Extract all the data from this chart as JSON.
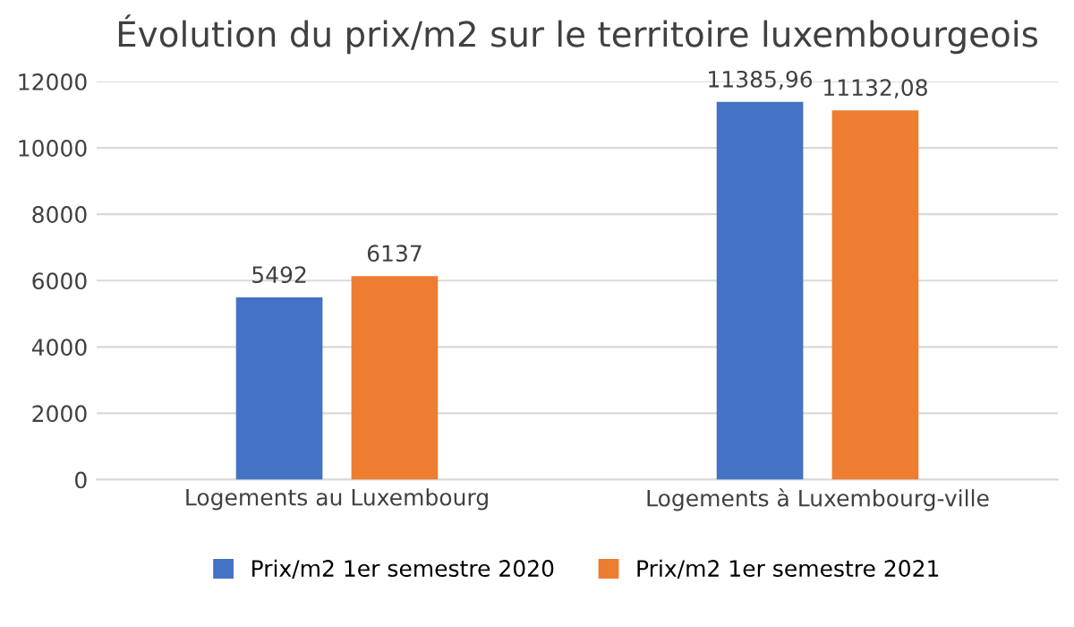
{
  "chart_data": {
    "type": "bar",
    "title": "Évolution du prix/m2 sur le territoire luxembourgeois",
    "categories": [
      "Logements au Luxembourg",
      "Logements à Luxembourg-ville"
    ],
    "series": [
      {
        "name": "Prix/m2 1er semestre 2020",
        "color": "#4472c4",
        "values": [
          5492,
          11385.96
        ],
        "value_labels": [
          "5492",
          "11385,96"
        ]
      },
      {
        "name": "Prix/m2 1er semestre 2021",
        "color": "#ed7d31",
        "values": [
          6137,
          11132.08
        ],
        "value_labels": [
          "6137",
          "11132,08"
        ]
      }
    ],
    "ylim": [
      0,
      12000
    ],
    "yticks": [
      0,
      2000,
      4000,
      6000,
      8000,
      10000,
      12000
    ],
    "grid": "y",
    "legend": "bottom"
  }
}
